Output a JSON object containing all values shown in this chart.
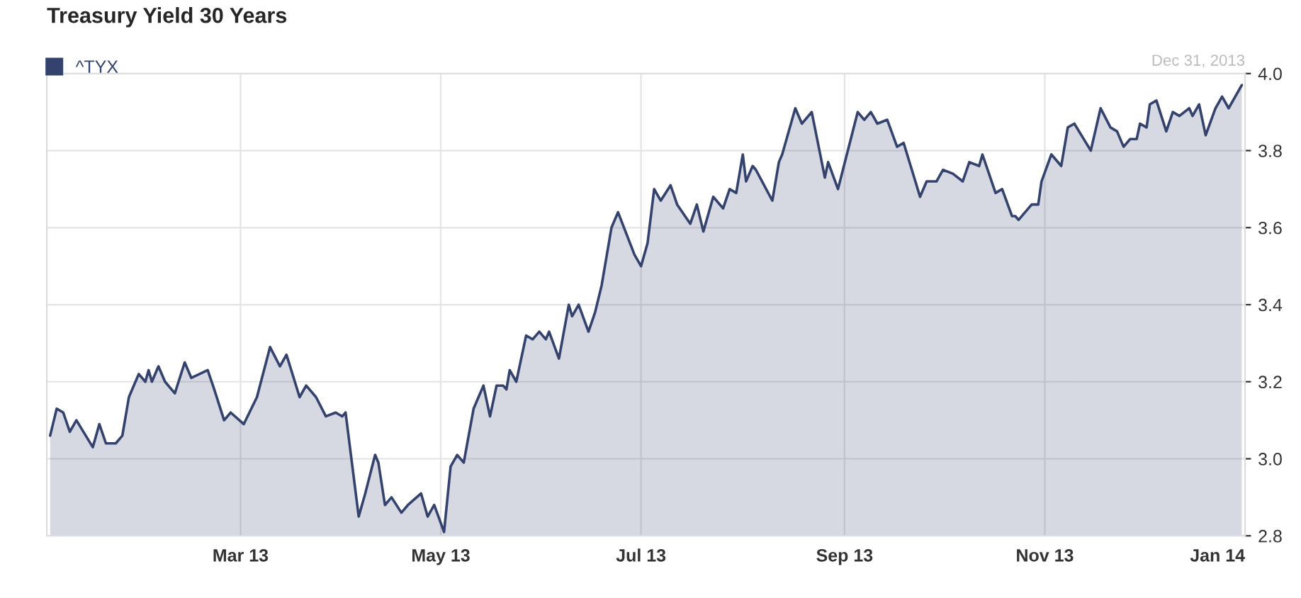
{
  "chart_data": {
    "type": "area",
    "title": "Treasury Yield 30 Years",
    "annotations": [
      "Dec 31, 2013"
    ],
    "x": [
      "2013-01-02",
      "2013-01-04",
      "2013-01-06",
      "2013-01-08",
      "2013-01-10",
      "2013-01-15",
      "2013-01-17",
      "2013-01-19",
      "2013-01-22",
      "2013-01-24",
      "2013-01-26",
      "2013-01-29",
      "2013-01-31",
      "2013-02-01",
      "2013-02-02",
      "2013-02-04",
      "2013-02-06",
      "2013-02-09",
      "2013-02-12",
      "2013-02-14",
      "2013-02-19",
      "2013-02-21",
      "2013-02-24",
      "2013-02-26",
      "2013-03-02",
      "2013-03-06",
      "2013-03-10",
      "2013-03-13",
      "2013-03-15",
      "2013-03-19",
      "2013-03-21",
      "2013-03-24",
      "2013-03-27",
      "2013-03-30",
      "2013-04-01",
      "2013-04-02",
      "2013-04-06",
      "2013-04-08",
      "2013-04-11",
      "2013-04-12",
      "2013-04-14",
      "2013-04-16",
      "2013-04-19",
      "2013-04-21",
      "2013-04-25",
      "2013-04-27",
      "2013-04-29",
      "2013-05-02",
      "2013-05-04",
      "2013-05-06",
      "2013-05-08",
      "2013-05-11",
      "2013-05-14",
      "2013-05-16",
      "2013-05-18",
      "2013-05-20",
      "2013-05-21",
      "2013-05-22",
      "2013-05-24",
      "2013-05-27",
      "2013-05-29",
      "2013-05-31",
      "2013-06-02",
      "2013-06-03",
      "2013-06-06",
      "2013-06-09",
      "2013-06-10",
      "2013-06-12",
      "2013-06-15",
      "2013-06-17",
      "2013-06-19",
      "2013-06-22",
      "2013-06-24",
      "2013-06-29",
      "2013-07-01",
      "2013-07-03",
      "2013-07-05",
      "2013-07-07",
      "2013-07-10",
      "2013-07-12",
      "2013-07-16",
      "2013-07-18",
      "2013-07-20",
      "2013-07-23",
      "2013-07-26",
      "2013-07-28",
      "2013-07-30",
      "2013-08-01",
      "2013-08-02",
      "2013-08-04",
      "2013-08-05",
      "2013-08-10",
      "2013-08-12",
      "2013-08-13",
      "2013-08-17",
      "2013-08-19",
      "2013-08-22",
      "2013-08-26",
      "2013-08-27",
      "2013-08-30",
      "2013-09-05",
      "2013-09-07",
      "2013-09-09",
      "2013-09-11",
      "2013-09-14",
      "2013-09-17",
      "2013-09-19",
      "2013-09-24",
      "2013-09-26",
      "2013-09-29",
      "2013-10-01",
      "2013-10-04",
      "2013-10-07",
      "2013-10-09",
      "2013-10-12",
      "2013-10-13",
      "2013-10-17",
      "2013-10-19",
      "2013-10-22",
      "2013-10-23",
      "2013-10-24",
      "2013-10-28",
      "2013-10-30",
      "2013-10-31",
      "2013-11-03",
      "2013-11-06",
      "2013-11-08",
      "2013-11-10",
      "2013-11-15",
      "2013-11-18",
      "2013-11-21",
      "2013-11-23",
      "2013-11-25",
      "2013-11-27",
      "2013-11-29",
      "2013-11-30",
      "2013-12-02",
      "2013-12-03",
      "2013-12-05",
      "2013-12-08",
      "2013-12-10",
      "2013-12-12",
      "2013-12-15",
      "2013-12-16",
      "2013-12-18",
      "2013-12-20",
      "2013-12-23",
      "2013-12-25",
      "2013-12-27",
      "2013-12-31"
    ],
    "series": [
      {
        "name": "^TYX",
        "color": "#34426e",
        "values": [
          3.06,
          3.13,
          3.12,
          3.07,
          3.1,
          3.03,
          3.09,
          3.04,
          3.04,
          3.06,
          3.16,
          3.22,
          3.2,
          3.23,
          3.2,
          3.24,
          3.2,
          3.17,
          3.25,
          3.21,
          3.23,
          3.18,
          3.1,
          3.12,
          3.09,
          3.16,
          3.29,
          3.24,
          3.27,
          3.16,
          3.19,
          3.16,
          3.11,
          3.12,
          3.11,
          3.12,
          2.85,
          2.91,
          3.01,
          2.99,
          2.88,
          2.9,
          2.86,
          2.88,
          2.91,
          2.85,
          2.88,
          2.81,
          2.98,
          3.01,
          2.99,
          3.13,
          3.19,
          3.11,
          3.19,
          3.19,
          3.18,
          3.23,
          3.2,
          3.32,
          3.31,
          3.33,
          3.31,
          3.33,
          3.26,
          3.4,
          3.37,
          3.4,
          3.33,
          3.38,
          3.45,
          3.6,
          3.64,
          3.53,
          3.5,
          3.56,
          3.7,
          3.67,
          3.71,
          3.66,
          3.61,
          3.66,
          3.59,
          3.68,
          3.65,
          3.7,
          3.69,
          3.79,
          3.72,
          3.76,
          3.75,
          3.67,
          3.77,
          3.79,
          3.91,
          3.87,
          3.9,
          3.73,
          3.77,
          3.7,
          3.9,
          3.88,
          3.9,
          3.87,
          3.88,
          3.81,
          3.82,
          3.68,
          3.72,
          3.72,
          3.75,
          3.74,
          3.72,
          3.77,
          3.76,
          3.79,
          3.69,
          3.7,
          3.63,
          3.63,
          3.62,
          3.66,
          3.66,
          3.72,
          3.79,
          3.76,
          3.86,
          3.87,
          3.8,
          3.91,
          3.86,
          3.85,
          3.81,
          3.83,
          3.83,
          3.87,
          3.86,
          3.92,
          3.93,
          3.85,
          3.9,
          3.89,
          3.91,
          3.89,
          3.92,
          3.84,
          3.91,
          3.94,
          3.91,
          3.97
        ]
      }
    ],
    "xlim": [
      "2013-01-01",
      "2014-01-01"
    ],
    "xticks": [
      {
        "value": "2013-03-01",
        "label": "Mar 13"
      },
      {
        "value": "2013-05-01",
        "label": "May 13"
      },
      {
        "value": "2013-07-01",
        "label": "Jul 13"
      },
      {
        "value": "2013-09-01",
        "label": "Sep 13"
      },
      {
        "value": "2013-11-01",
        "label": "Nov 13"
      },
      {
        "value": "2014-01-01",
        "label": "Jan 14"
      }
    ],
    "ylim": [
      2.8,
      4.0
    ],
    "yticks": [
      {
        "value": 2.8,
        "label": "2.8"
      },
      {
        "value": 3.0,
        "label": "3.0"
      },
      {
        "value": 3.2,
        "label": "3.2"
      },
      {
        "value": 3.4,
        "label": "3.4"
      },
      {
        "value": 3.6,
        "label": "3.6"
      },
      {
        "value": 3.8,
        "label": "3.8"
      },
      {
        "value": 4.0,
        "label": "4.0"
      }
    ],
    "grid": true,
    "legend": "top left",
    "marker": "none",
    "line_style": "solid"
  }
}
